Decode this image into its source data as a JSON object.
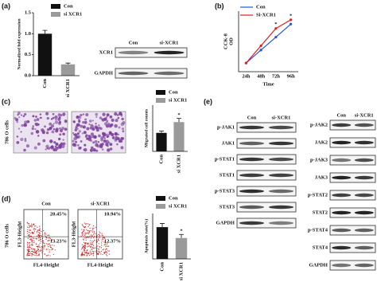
{
  "panel_labels": [
    "(a)",
    "(b)",
    "(c)",
    "(d)",
    "(e)"
  ],
  "chart_data": [
    {
      "type": "bar",
      "ylabel": "Normalized fold expression",
      "categories": [
        "Con",
        "si XCR1"
      ],
      "values": [
        1.0,
        0.27
      ],
      "errors": [
        0.08,
        0.03
      ],
      "colors": [
        "#111111",
        "#9a9a9a"
      ],
      "ylim": [
        0,
        1.5
      ],
      "yticks": [
        {
          "value": 0,
          "label": "0.0"
        },
        {
          "value": 0.5,
          "label": "0.5"
        },
        {
          "value": 1,
          "label": "1.0"
        },
        {
          "value": 1.5,
          "label": "1.5"
        }
      ]
    },
    {
      "type": "line",
      "ylabel": [
        "CCK-8",
        "OD"
      ],
      "xlabel": "Time",
      "categories": [
        "24h",
        "48h",
        "72h",
        "96h"
      ],
      "series": [
        {
          "name": "Con",
          "color": "#2255dd",
          "values": [
            0.2,
            0.5,
            0.8,
            1.1
          ]
        },
        {
          "name": "Si-XCR1",
          "color": "#dd2222",
          "values": [
            0.2,
            0.6,
            1.0,
            1.2
          ]
        }
      ],
      "ylim": [
        0,
        1.4
      ],
      "annotations": [
        "*",
        "*"
      ]
    },
    {
      "type": "bar",
      "ylabel": "Migrated cell counts",
      "categories": [
        "Con",
        "si XCR1"
      ],
      "values": [
        60,
        95
      ],
      "errors": [
        6,
        12
      ],
      "colors": [
        "#111111",
        "#9a9a9a"
      ],
      "ylim": [
        0,
        150
      ],
      "annotation": "*"
    },
    {
      "type": "bar",
      "ylabel": "Apoptosis rate(%)",
      "categories": [
        "Con",
        "si XCR1"
      ],
      "values": [
        35,
        23
      ],
      "errors": [
        4,
        4
      ],
      "colors": [
        "#111111",
        "#9a9a9a"
      ],
      "ylim": [
        0,
        50
      ],
      "annotation": "*"
    }
  ],
  "migration": {
    "side_label": "786 O cells"
  },
  "flow": {
    "side_label": "786 O cells",
    "ylabel": "FL3-Height",
    "xlabel": "FL4-Height",
    "panels": [
      {
        "title": "Con",
        "upper_right": "20.45%",
        "lower_right": "13.23%"
      },
      {
        "title": "si-XCR1",
        "upper_right": "10.94%",
        "lower_right": "12.37%"
      }
    ]
  },
  "blot_a": {
    "lanes": [
      "Con",
      "si-XCR1"
    ],
    "rows": [
      "XCR1",
      "GAPDH"
    ]
  },
  "blot_e": {
    "left": {
      "lanes": [
        "Con",
        "si-XCR1"
      ],
      "rows": [
        "p-JAK1",
        "JAK1",
        "p-STAT1",
        "STAT1",
        "p-STAT3",
        "STAT3",
        "GAPDH"
      ]
    },
    "right": {
      "lanes": [
        "Con",
        "si-XCR1"
      ],
      "rows": [
        "p-JAK2",
        "JAK2",
        "p-JAK3",
        "JAK3",
        "p-STAT2",
        "STAT2",
        "p-STAT4",
        "STAT4",
        "GAPDH"
      ]
    }
  }
}
